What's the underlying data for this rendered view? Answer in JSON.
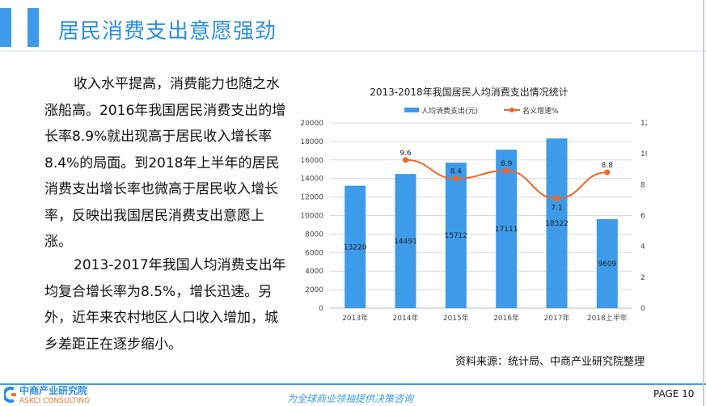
{
  "header": {
    "title": "居民消费支出意愿强劲"
  },
  "paragraphs": [
    "收入水平提高，消费能力也随之水涨船高。2016年我国居民消费支出的增长率8.9%就出现高于居民收入增长率8.4%的局面。到2018年上半年的居民消费支出增长率也微高于居民收入增长率，反映出我国居民消费支出意愿上涨。",
    "2013-2017年我国人均消费支出年均复合增长率为8.5%，增长迅速。另外，近年来农村地区人口收入增加，城乡差距正在逐步缩小。"
  ],
  "source": "资料来源：统计局、中商产业研究院整理",
  "footer": {
    "logo_cn": "中商产业研究院",
    "logo_en": "ASKCI CONSULTING",
    "slogan": "为全球商业领袖提供决策咨询",
    "page": "PAGE  10"
  },
  "chart_data": {
    "type": "bar",
    "title": "2013-2018年我国居民人均消费支出情况统计",
    "categories": [
      "2013年",
      "2014年",
      "2015年",
      "2016年",
      "2017年",
      "2018上半年"
    ],
    "series": [
      {
        "name": "人均消费支出(元)",
        "type": "bar",
        "axis": "left",
        "color": "#3d9be9",
        "values": [
          13220,
          14491,
          15712,
          17111,
          18322,
          9609
        ]
      },
      {
        "name": "名义增速%",
        "type": "line",
        "axis": "right",
        "color": "#f26522",
        "values": [
          null,
          9.6,
          8.4,
          8.9,
          7.1,
          8.8
        ]
      }
    ],
    "ylim": [
      0,
      20000
    ],
    "yticks": [
      0,
      2000,
      4000,
      6000,
      8000,
      10000,
      12000,
      14000,
      16000,
      18000,
      20000
    ],
    "y2lim": [
      0,
      12
    ],
    "y2ticks": [
      0,
      2,
      4,
      6,
      8,
      10,
      12
    ],
    "legend": "top",
    "grid": true
  }
}
